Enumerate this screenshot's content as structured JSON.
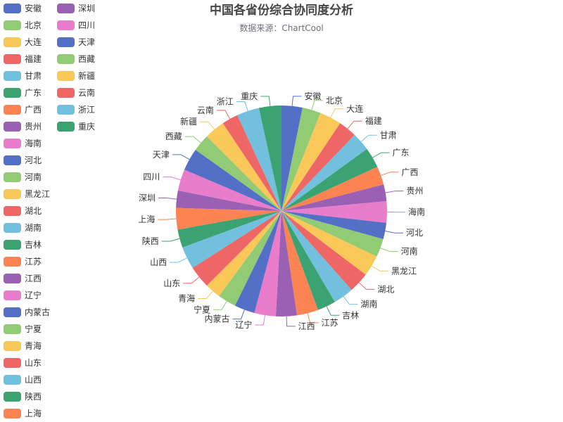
{
  "chart_data": {
    "type": "pie",
    "title": "中国各省份综合协同度分析",
    "subtitle": "数据来源：ChartCool",
    "categories": [
      "安徽",
      "北京",
      "大连",
      "福建",
      "甘肃",
      "广东",
      "广西",
      "贵州",
      "海南",
      "河北",
      "河南",
      "黑龙江",
      "湖北",
      "湖南",
      "吉林",
      "江苏",
      "江西",
      "辽宁",
      "内蒙古",
      "宁夏",
      "青海",
      "山东",
      "山西",
      "陕西",
      "上海",
      "深圳",
      "四川",
      "天津",
      "西藏",
      "新疆",
      "云南",
      "浙江",
      "重庆"
    ],
    "values": [
      4.1,
      3.6,
      4.3,
      3.6,
      3.6,
      4.0,
      3.6,
      3.3,
      4.2,
      3.2,
      3.6,
      4.1,
      4.0,
      4.0,
      3.6,
      4.2,
      4.1,
      4.2,
      4.0,
      3.6,
      3.1,
      4.4,
      4.4,
      3.6,
      4.2,
      3.4,
      4.2,
      4.4,
      3.4,
      4.0,
      3.2,
      4.4,
      4.4
    ],
    "legend_position": "left",
    "colors": [
      "#5470c6",
      "#91cc75",
      "#fac858",
      "#ee6666",
      "#73c0de",
      "#3ba272",
      "#fc8452",
      "#9a60b4",
      "#ea7ccc"
    ]
  }
}
